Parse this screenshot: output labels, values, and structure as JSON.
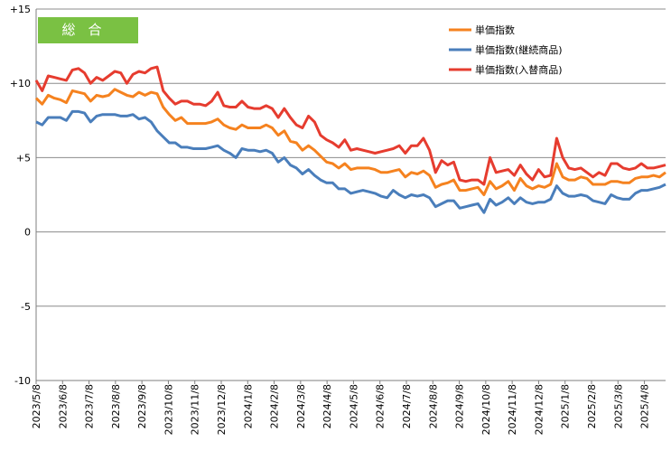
{
  "chart_data": {
    "type": "line",
    "label_box": "総合",
    "x_tick_labels": [
      "2023/5/8",
      "2023/6/8",
      "2023/7/8",
      "2023/8/8",
      "2023/9/8",
      "2023/10/8",
      "2023/11/8",
      "2023/12/8",
      "2024/1/8",
      "2024/2/8",
      "2024/3/8",
      "2024/4/8",
      "2024/5/8",
      "2024/6/8",
      "2024/7/8",
      "2024/8/8",
      "2024/9/8",
      "2024/10/8",
      "2024/11/8",
      "2024/12/8",
      "2025/1/8",
      "2025/2/8",
      "2025/3/8",
      "2025/4/8"
    ],
    "y_tick_labels": [
      "+15",
      "+10",
      "+5",
      "0",
      "-5",
      "-10"
    ],
    "y_ticks": [
      15,
      10,
      5,
      0,
      -5,
      -10
    ],
    "ylim": [
      -10,
      15
    ],
    "grid": "horizontal",
    "legend_position": "top-right",
    "series": [
      {
        "name": "単価指数",
        "color": "#f5821f",
        "values": [
          9.0,
          8.6,
          9.2,
          9.0,
          8.9,
          8.7,
          9.5,
          9.4,
          9.3,
          8.8,
          9.2,
          9.1,
          9.2,
          9.6,
          9.4,
          9.2,
          9.1,
          9.4,
          9.2,
          9.4,
          9.3,
          8.4,
          7.9,
          7.5,
          7.7,
          7.3,
          7.3,
          7.3,
          7.3,
          7.4,
          7.6,
          7.2,
          7.0,
          6.9,
          7.2,
          7.0,
          7.0,
          7.0,
          7.2,
          7.0,
          6.5,
          6.8,
          6.1,
          6.0,
          5.5,
          5.8,
          5.5,
          5.1,
          4.7,
          4.6,
          4.3,
          4.6,
          4.2,
          4.3,
          4.3,
          4.3,
          4.2,
          4.0,
          4.0,
          4.1,
          4.2,
          3.7,
          4.0,
          3.9,
          4.1,
          3.8,
          3.0,
          3.2,
          3.3,
          3.5,
          2.8,
          2.8,
          2.9,
          3.0,
          2.5,
          3.4,
          2.9,
          3.1,
          3.4,
          2.8,
          3.6,
          3.1,
          2.9,
          3.1,
          3.0,
          3.2,
          4.6,
          3.7,
          3.5,
          3.5,
          3.7,
          3.6,
          3.2,
          3.2,
          3.2,
          3.4,
          3.4,
          3.3,
          3.3,
          3.6,
          3.7,
          3.7,
          3.8,
          3.7,
          4.0
        ]
      },
      {
        "name": "単価指数(継続商品)",
        "color": "#4a7ebb",
        "values": [
          7.4,
          7.2,
          7.7,
          7.7,
          7.7,
          7.5,
          8.1,
          8.1,
          8.0,
          7.4,
          7.8,
          7.9,
          7.9,
          7.9,
          7.8,
          7.8,
          7.9,
          7.6,
          7.7,
          7.4,
          6.8,
          6.4,
          6.0,
          6.0,
          5.7,
          5.7,
          5.6,
          5.6,
          5.6,
          5.7,
          5.8,
          5.5,
          5.3,
          5.0,
          5.6,
          5.5,
          5.5,
          5.4,
          5.5,
          5.3,
          4.7,
          5.0,
          4.5,
          4.3,
          3.9,
          4.2,
          3.8,
          3.5,
          3.3,
          3.3,
          2.9,
          2.9,
          2.6,
          2.7,
          2.8,
          2.7,
          2.6,
          2.4,
          2.3,
          2.8,
          2.5,
          2.3,
          2.5,
          2.4,
          2.5,
          2.3,
          1.7,
          1.9,
          2.1,
          2.1,
          1.6,
          1.7,
          1.8,
          1.9,
          1.3,
          2.2,
          1.8,
          2.0,
          2.3,
          1.9,
          2.3,
          2.0,
          1.9,
          2.0,
          2.0,
          2.2,
          3.1,
          2.6,
          2.4,
          2.4,
          2.5,
          2.4,
          2.1,
          2.0,
          1.9,
          2.5,
          2.3,
          2.2,
          2.2,
          2.6,
          2.8,
          2.8,
          2.9,
          3.0,
          3.2
        ]
      },
      {
        "name": "単価指数(入替商品)",
        "color": "#e63c2f",
        "values": [
          10.2,
          9.5,
          10.5,
          10.4,
          10.3,
          10.2,
          10.9,
          11.0,
          10.7,
          10.0,
          10.4,
          10.2,
          10.5,
          10.8,
          10.7,
          10.0,
          10.6,
          10.8,
          10.7,
          11.0,
          11.1,
          9.5,
          9.0,
          8.6,
          8.8,
          8.8,
          8.6,
          8.6,
          8.5,
          8.8,
          9.4,
          8.5,
          8.4,
          8.4,
          8.8,
          8.4,
          8.3,
          8.3,
          8.5,
          8.3,
          7.7,
          8.3,
          7.7,
          7.2,
          7.0,
          7.8,
          7.4,
          6.5,
          6.2,
          6.0,
          5.7,
          6.2,
          5.5,
          5.6,
          5.5,
          5.4,
          5.3,
          5.4,
          5.5,
          5.6,
          5.8,
          5.3,
          5.8,
          5.8,
          6.3,
          5.5,
          4.0,
          4.8,
          4.5,
          4.7,
          3.5,
          3.4,
          3.5,
          3.5,
          3.2,
          5.0,
          4.0,
          4.1,
          4.2,
          3.8,
          4.5,
          3.9,
          3.5,
          4.2,
          3.7,
          3.8,
          6.3,
          5.0,
          4.3,
          4.2,
          4.3,
          4.0,
          3.7,
          4.0,
          3.8,
          4.6,
          4.6,
          4.3,
          4.2,
          4.3,
          4.6,
          4.3,
          4.3,
          4.4,
          4.5
        ]
      }
    ]
  }
}
